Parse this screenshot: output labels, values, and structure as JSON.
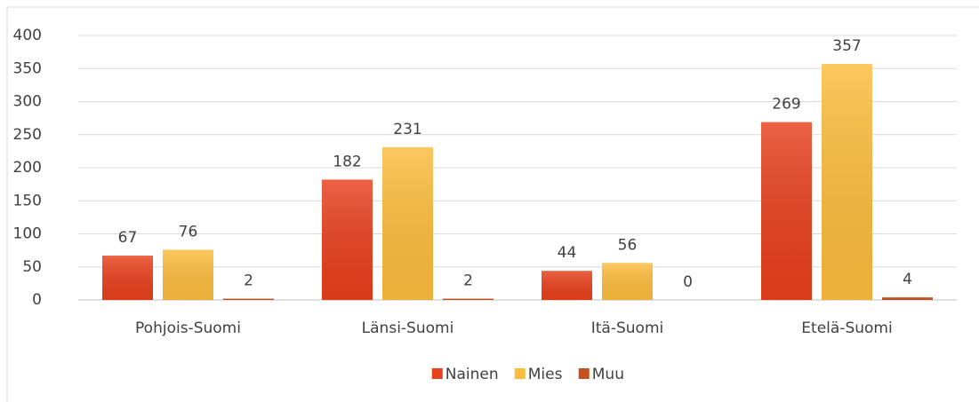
{
  "chart_data": {
    "type": "bar",
    "categories": [
      "Pohjois-Suomi",
      "Länsi-Suomi",
      "Itä-Suomi",
      "Etelä-Suomi"
    ],
    "series": [
      {
        "name": "Nainen",
        "color": "#e8401c",
        "values": [
          67,
          182,
          44,
          269
        ]
      },
      {
        "name": "Mies",
        "color": "#fbbc3c",
        "values": [
          76,
          231,
          56,
          357
        ]
      },
      {
        "name": "Muu",
        "color": "#c4501f",
        "values": [
          2,
          2,
          0,
          4
        ]
      }
    ],
    "ylim": [
      0,
      400
    ],
    "yticks": [
      0,
      50,
      100,
      150,
      200,
      250,
      300,
      350,
      400
    ],
    "grid": true,
    "legend": "bottom",
    "data_labels": true
  }
}
